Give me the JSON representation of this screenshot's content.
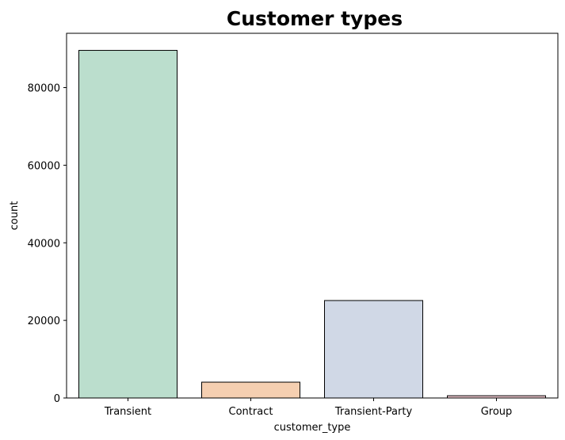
{
  "chart_data": {
    "type": "bar",
    "title": "Customer types",
    "xlabel": "customer_type",
    "ylabel": "count",
    "categories": [
      "Transient",
      "Contract",
      "Transient-Party",
      "Group"
    ],
    "values": [
      89600,
      4080,
      25120,
      580
    ],
    "yticks": [
      0,
      20000,
      40000,
      60000,
      80000
    ],
    "ylim": [
      0,
      94000
    ],
    "colors": [
      "#bbdecd",
      "#f5cfb1",
      "#d0d8e6",
      "#f1cbd2"
    ],
    "edge_color": "#000000",
    "grid": false,
    "legend": false
  }
}
